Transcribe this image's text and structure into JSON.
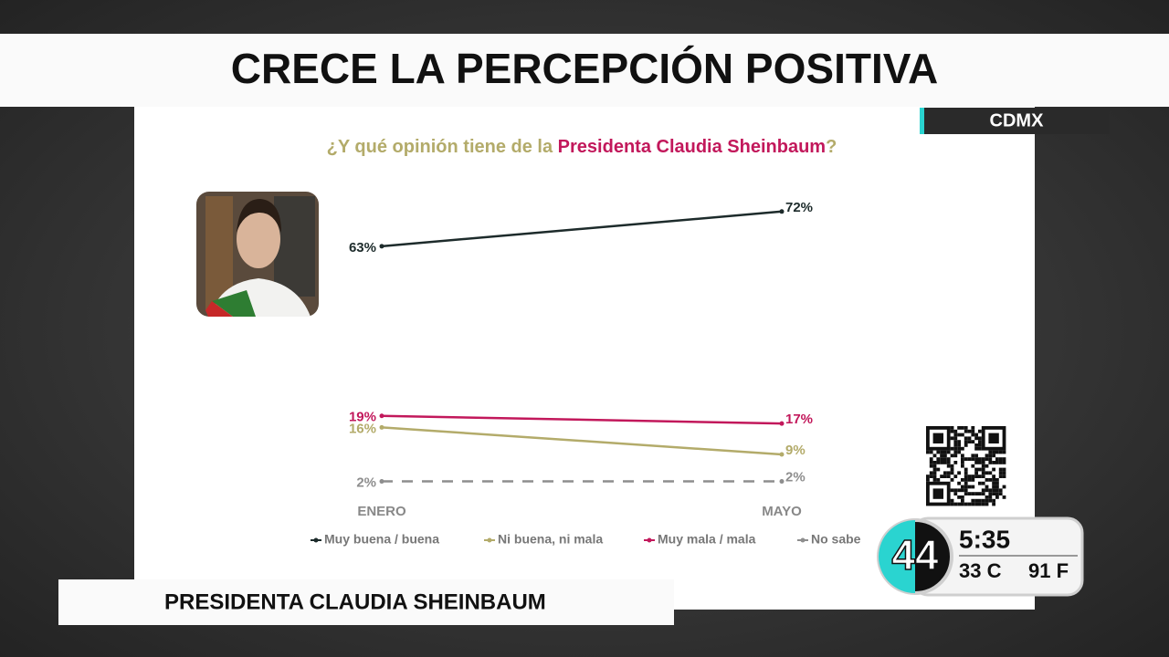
{
  "header": {
    "title": "CRECE LA PERCEPCIÓN POSITIVA",
    "location": "CDMX"
  },
  "lower_third": {
    "text": "PRESIDENTA CLAUDIA SHEINBAUM"
  },
  "clock": {
    "channel": "44",
    "time": "5:35",
    "celsius": "33 C",
    "fahrenheit": "91 F"
  },
  "chart_data": {
    "type": "line",
    "title_parts": [
      "¿Y qué opinión tiene de la ",
      "Presidenta Claudia Sheinbaum",
      "?"
    ],
    "categories": [
      "ENERO",
      "MAYO"
    ],
    "ylim": [
      0,
      80
    ],
    "series": [
      {
        "name": "Muy buena / buena",
        "color": "#1d2b2b",
        "values": [
          63,
          72
        ],
        "value_labels": [
          "63%",
          "72%"
        ]
      },
      {
        "name": "Ni buena, ni mala",
        "color": "#b3ab6a",
        "values": [
          16,
          9
        ],
        "value_labels": [
          "16%",
          "9%"
        ]
      },
      {
        "name": "Muy mala / mala",
        "color": "#c2185b",
        "values": [
          19,
          17
        ],
        "value_labels": [
          "19%",
          "17%"
        ]
      },
      {
        "name": "No sabe",
        "color": "#8e8e8e",
        "values": [
          2,
          2
        ],
        "value_labels": [
          "2%",
          "2%"
        ],
        "dashed": true
      }
    ]
  }
}
